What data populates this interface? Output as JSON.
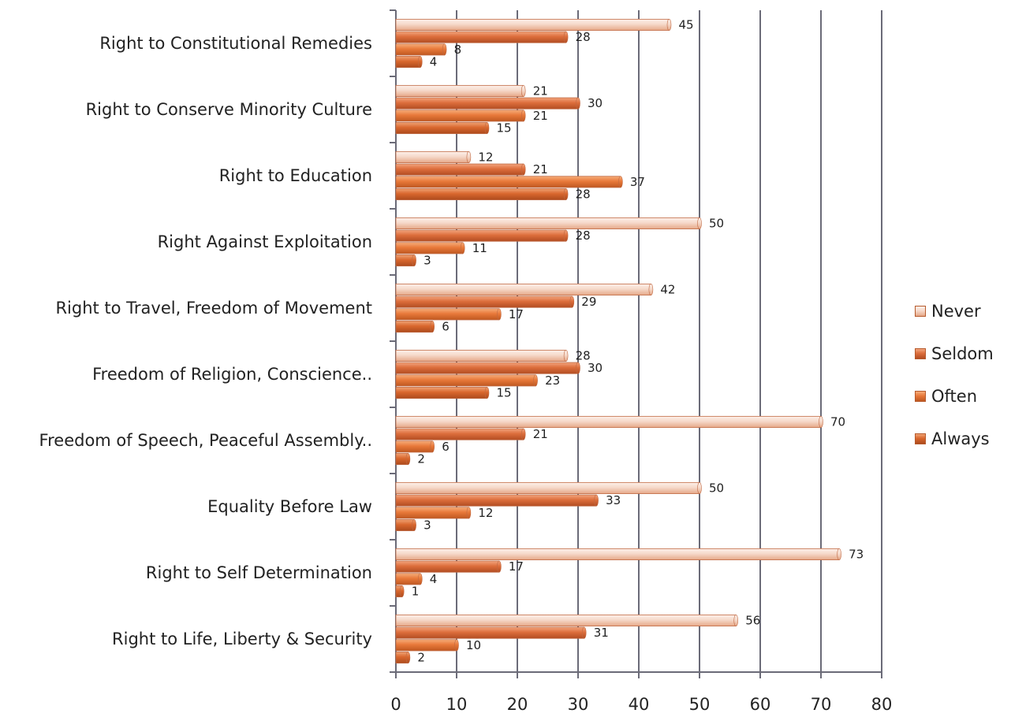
{
  "chart_data": {
    "type": "bar",
    "orientation": "horizontal",
    "categories": [
      "Right to Constitutional Remedies",
      "Right to Conserve Minority Culture",
      "Right to Education",
      "Right Against Exploitation",
      "Right to Travel, Freedom of Movement",
      "Freedom of Religion, Conscience..",
      "Freedom of Speech, Peaceful Assembly..",
      "Equality Before Law",
      "Right to Self Determination",
      "Right to Life, Liberty & Security"
    ],
    "series": [
      {
        "name": "Never",
        "values": [
          45,
          21,
          12,
          50,
          42,
          28,
          70,
          50,
          73,
          56
        ]
      },
      {
        "name": "Seldom",
        "values": [
          28,
          30,
          21,
          28,
          29,
          30,
          21,
          33,
          17,
          31
        ]
      },
      {
        "name": "Often",
        "values": [
          8,
          21,
          37,
          11,
          17,
          23,
          6,
          12,
          4,
          10
        ]
      },
      {
        "name": "Always",
        "values": [
          4,
          15,
          28,
          3,
          6,
          15,
          2,
          3,
          1,
          2
        ]
      }
    ],
    "xlim": [
      0,
      80
    ],
    "xticks": [
      "0",
      "10",
      "20",
      "30",
      "40",
      "50",
      "60",
      "70",
      "80"
    ],
    "grid": "vertical",
    "legend_position": "right",
    "colors": {
      "Never": "#f4d3c3",
      "Seldom": "#d9693a",
      "Often": "#e57a3c",
      "Always": "#d8662e"
    }
  }
}
